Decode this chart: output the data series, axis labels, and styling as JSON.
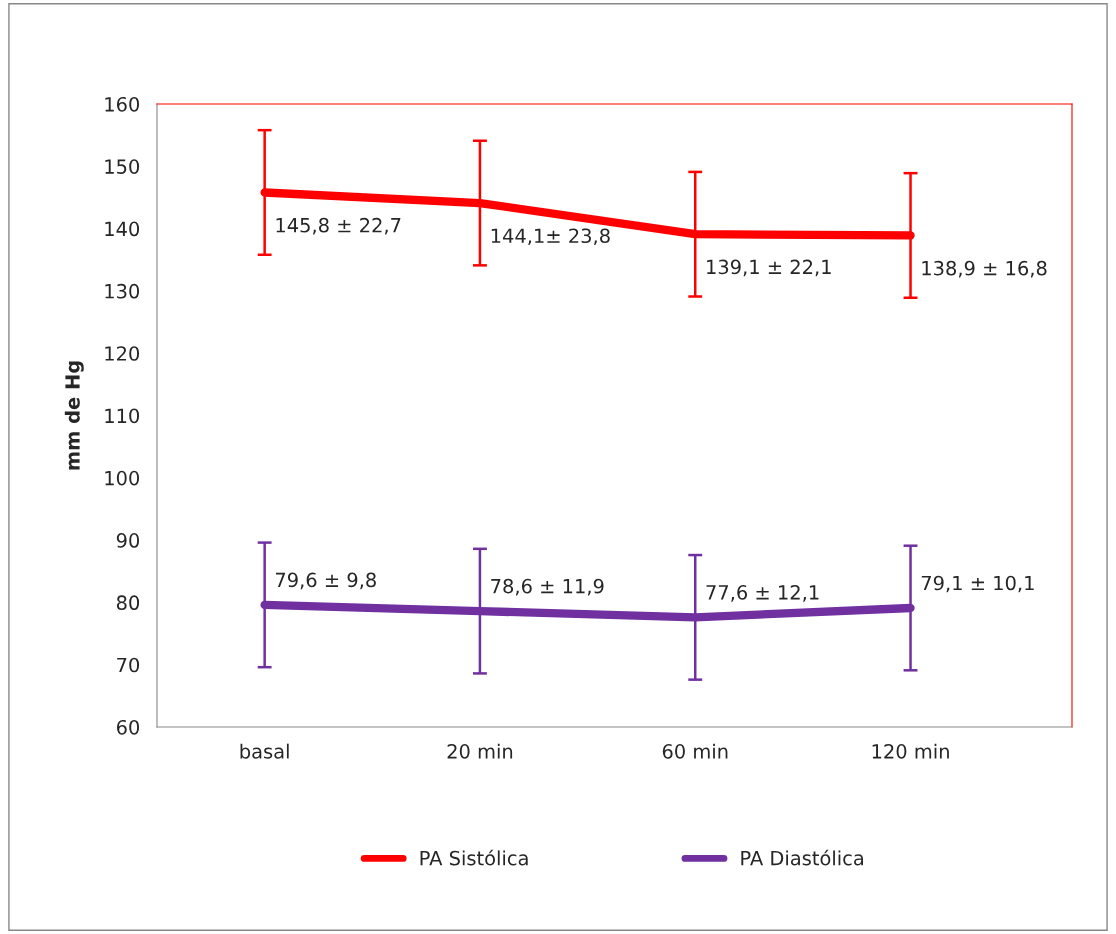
{
  "chart_data": {
    "type": "line",
    "ylabel": "mm de Hg",
    "categories": [
      "basal",
      "20 min",
      "60 min",
      "120 min"
    ],
    "series": [
      {
        "name": "PA Sistólica",
        "color": "#ff0000",
        "values": [
          145.8,
          144.1,
          139.1,
          138.9
        ],
        "errors": [
          10,
          10,
          10,
          10
        ],
        "value_labels": [
          "145,8 ± 22,7",
          "144,1± 23,8",
          "139,1 ± 22,1",
          "138,9 ± 16,8"
        ]
      },
      {
        "name": "PA Diastólica",
        "color": "#7030a0",
        "values": [
          79.6,
          78.6,
          77.6,
          79.1
        ],
        "errors": [
          10,
          10,
          10,
          10
        ],
        "value_labels": [
          "79,6 ± 9,8",
          "78,6 ± 11,9",
          "77,6 ± 12,1",
          "79,1 ± 10,1"
        ]
      }
    ],
    "ylim": [
      60,
      160
    ],
    "yticks": [
      60,
      70,
      80,
      90,
      100,
      110,
      120,
      130,
      140,
      150,
      160
    ],
    "grid": false,
    "legend": "bottom",
    "marker": "none",
    "line_style": "solid"
  }
}
